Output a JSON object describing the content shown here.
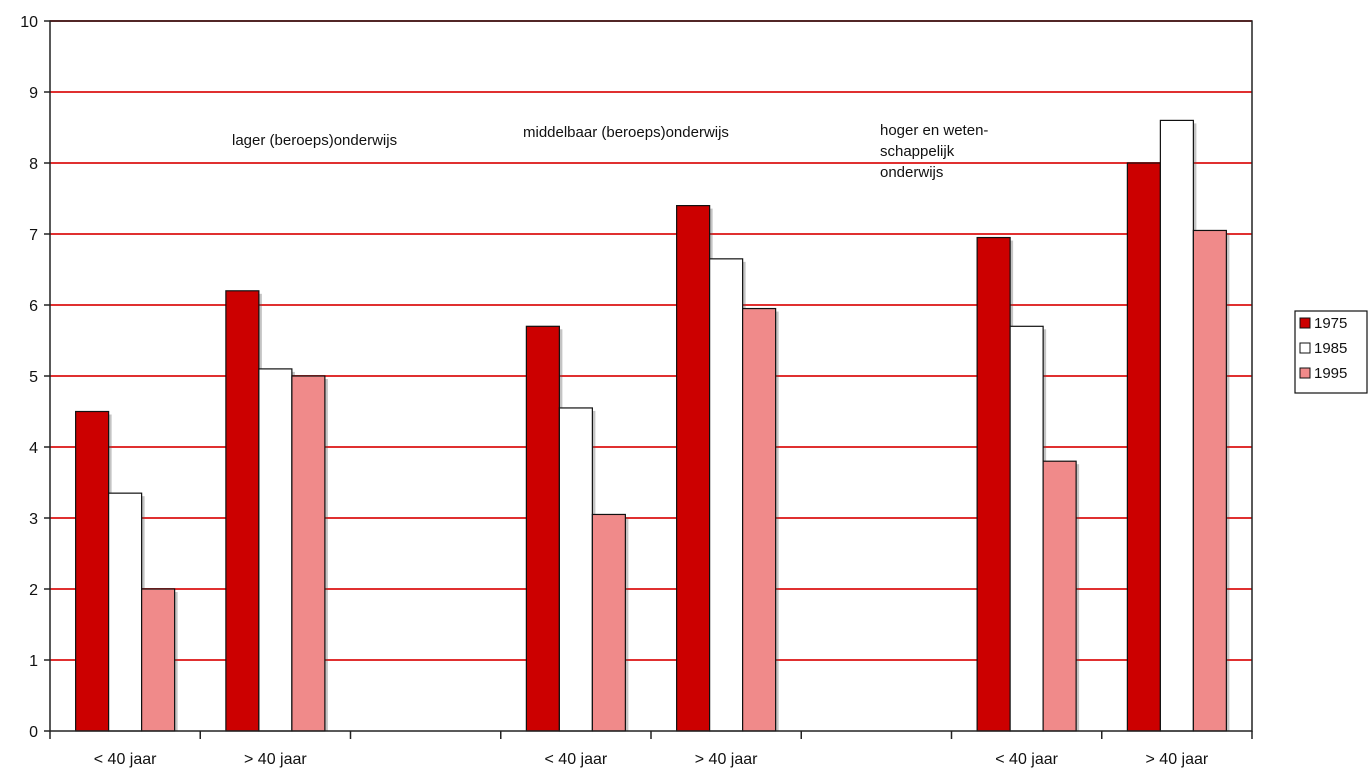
{
  "chart_data": {
    "type": "bar",
    "categories": [
      "< 40 jaar",
      "> 40 jaar",
      "",
      "< 40 jaar",
      "> 40 jaar",
      "",
      "< 40 jaar",
      "> 40 jaar"
    ],
    "series": [
      {
        "name": "1975",
        "values": [
          4.5,
          6.2,
          null,
          5.7,
          7.4,
          null,
          6.95,
          8.0
        ]
      },
      {
        "name": "1985",
        "values": [
          3.35,
          5.1,
          null,
          4.55,
          6.65,
          null,
          5.7,
          8.6
        ]
      },
      {
        "name": "1995",
        "values": [
          2.0,
          5.0,
          null,
          3.05,
          5.95,
          null,
          3.8,
          7.05
        ]
      }
    ],
    "ylim": [
      0,
      10
    ],
    "yticks": [
      "0",
      "1",
      "2",
      "3",
      "4",
      "5",
      "6",
      "7",
      "8",
      "9",
      "10"
    ],
    "grid": true,
    "legend_position": "right",
    "group_labels": [
      {
        "lines": [
          "lager (beroeps)onderwijs"
        ]
      },
      {
        "lines": [
          "middelbaar (beroeps)onderwijs"
        ]
      },
      {
        "lines": [
          "hoger en weten-",
          "schappelijk",
          "onderwijs"
        ]
      }
    ],
    "colors": {
      "1975": "#cc0000",
      "1985": "#ffffff",
      "1995": "#f08a8a",
      "gridline": "#e03030",
      "axis": "#222222"
    }
  }
}
